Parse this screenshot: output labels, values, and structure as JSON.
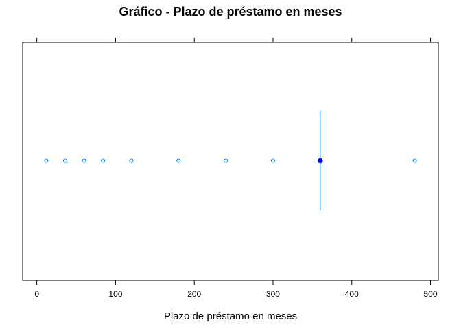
{
  "chart_data": {
    "type": "scatter",
    "title": "Gráfico - Plazo de préstamo en meses",
    "xlabel": "Plazo de préstamo en meses",
    "ylabel": "",
    "xlim": [
      -18,
      510
    ],
    "xticks": [
      0,
      100,
      200,
      300,
      400,
      500
    ],
    "tick_labels": [
      "0",
      "100",
      "200",
      "300",
      "400",
      "500"
    ],
    "points": [
      12,
      36,
      60,
      84,
      120,
      180,
      240,
      300,
      360,
      480
    ],
    "highlight_value": 360,
    "grid": false,
    "point_color": "#0080ff",
    "highlight_color": "#0000ff",
    "line_color": "#0080ff"
  }
}
